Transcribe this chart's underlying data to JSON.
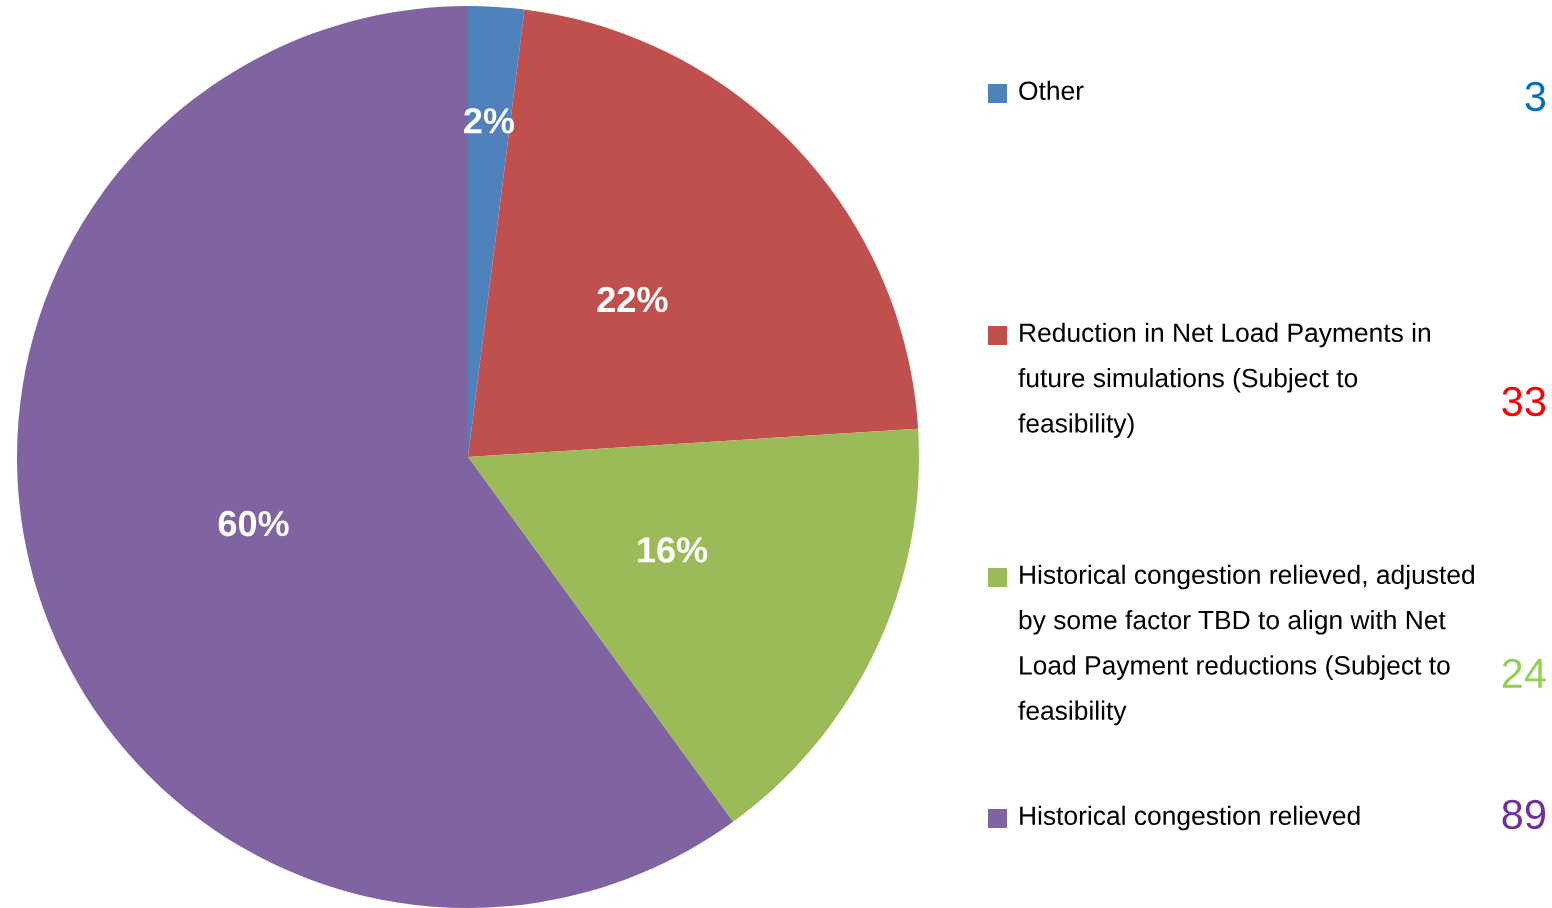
{
  "chart_data": {
    "type": "pie",
    "categories": [
      "Other",
      "Reduction in Net Load Payments in future simulations (Subject to feasibility)",
      "Historical congestion relieved, adjusted by some factor TBD to align with Net Load Payment reductions (Subject to feasibility",
      "Historical congestion relieved"
    ],
    "values": [
      2,
      22,
      16,
      60
    ],
    "colors": [
      "#4f81bd",
      "#c0504d",
      "#9bbb59",
      "#8064a2"
    ],
    "value_labels": [
      "2%",
      "22%",
      "16%",
      "60%"
    ],
    "annotations": [
      "3",
      "33",
      "24",
      "89"
    ],
    "legend": "right"
  }
}
